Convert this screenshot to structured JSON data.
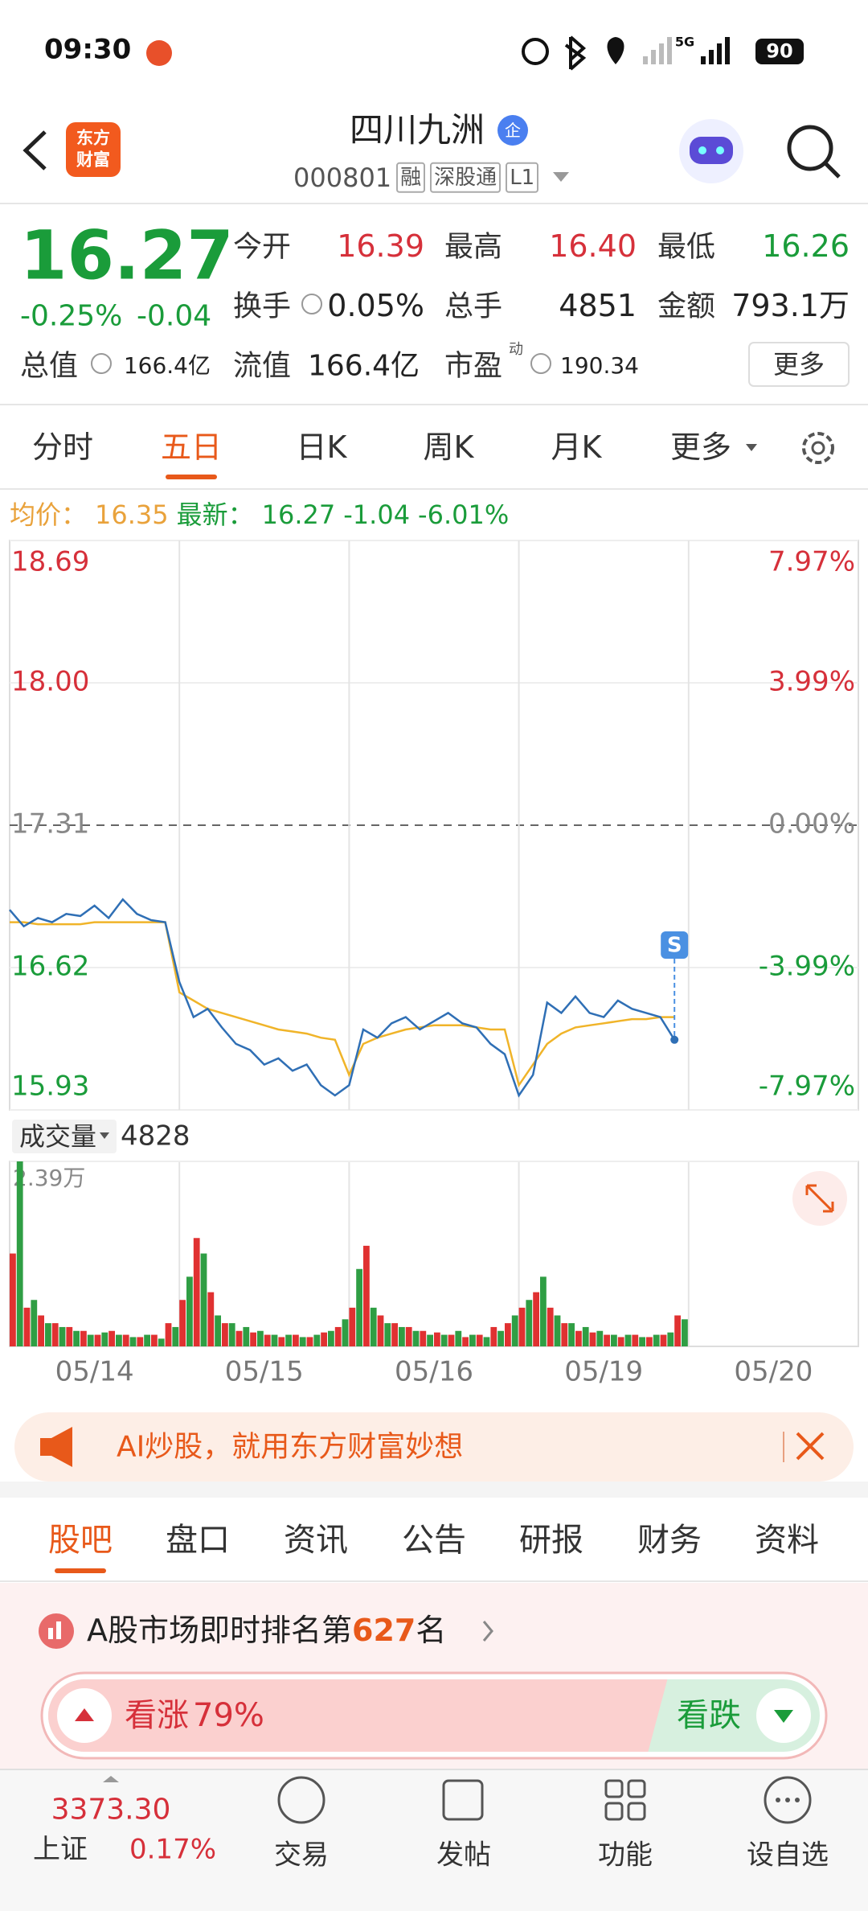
{
  "status": {
    "time": "09:30",
    "network": "5G",
    "battery": "90"
  },
  "header": {
    "logo": "东方财富",
    "title": "四川九洲",
    "badge": "企",
    "code": "000801",
    "tags": [
      "融",
      "深股通",
      "L1"
    ]
  },
  "quote": {
    "price": "16.27",
    "change_pct": "-0.25%",
    "change": "-0.04",
    "more": "更多",
    "fields": [
      {
        "label": "今开",
        "value": "16.39",
        "color": "#d6303a"
      },
      {
        "label": "最高",
        "value": "16.40",
        "color": "#d6303a"
      },
      {
        "label": "最低",
        "value": "16.26",
        "color": "#1a9c3a"
      },
      {
        "label": "换手",
        "value": "0.05%",
        "color": "#222222"
      },
      {
        "label": "总手",
        "value": "4851",
        "color": "#222222"
      },
      {
        "label": "金额",
        "value": "793.1万",
        "color": "#222222"
      },
      {
        "label": "总值",
        "value": "166.4亿",
        "color": "#222222"
      },
      {
        "label": "流值",
        "value": "166.4亿",
        "color": "#222222"
      },
      {
        "label": "市盈",
        "sup": "动",
        "value": "190.34",
        "color": "#222222"
      }
    ]
  },
  "tabs": {
    "items": [
      "分时",
      "五日",
      "日K",
      "周K",
      "月K",
      "更多"
    ],
    "active": 1
  },
  "chart_info": {
    "avg_label": "均价：",
    "avg": "16.35",
    "last_label": "最新：",
    "last": "16.27",
    "change": "-1.04",
    "change_pct": "-6.01%",
    "marker": "S",
    "volume_label": "成交量",
    "volume_last": "4828"
  },
  "chart_data": [
    {
      "type": "line",
      "x": [
        0,
        1,
        2,
        3,
        4,
        5,
        6,
        7,
        8,
        9,
        10,
        11,
        12,
        13,
        14,
        15,
        16,
        17,
        18,
        19,
        20,
        21,
        22,
        23,
        24,
        25,
        26,
        27,
        28,
        29,
        30,
        31,
        32,
        33,
        34,
        35,
        36,
        37,
        38,
        39,
        40,
        41,
        42,
        43,
        44,
        45,
        46,
        47
      ],
      "xlim": [
        0,
        60
      ],
      "xticks": [
        {
          "value": 6,
          "label": "05/14"
        },
        {
          "value": 18,
          "label": "05/15"
        },
        {
          "value": 30,
          "label": "05/16"
        },
        {
          "value": 42,
          "label": "05/19"
        },
        {
          "value": 54,
          "label": "05/20"
        }
      ],
      "ylim": [
        15.93,
        18.69
      ],
      "yticks": [
        18.69,
        {
          "value": 18,
          "label": "18.00"
        },
        17.31,
        16.62,
        15.93
      ],
      "y2lim": [
        -7.97,
        7.97
      ],
      "y2ticks": [
        {
          "value": 7.97,
          "label": "7.97%"
        },
        {
          "value": 3.99,
          "label": "3.99%"
        },
        {
          "value": 0,
          "label": "0.00%"
        },
        {
          "value": -3.99,
          "label": "-3.99%"
        },
        {
          "value": -7.97,
          "label": "-7.97%"
        }
      ],
      "grid": true,
      "series": [
        {
          "color": "#2f6fb5",
          "values": [
            16.9,
            16.82,
            16.86,
            16.84,
            16.88,
            16.87,
            16.92,
            16.86,
            16.95,
            16.88,
            16.85,
            16.84,
            16.55,
            16.38,
            16.42,
            16.33,
            16.25,
            16.22,
            16.15,
            16.18,
            16.12,
            16.15,
            16.05,
            16.0,
            16.05,
            16.32,
            16.28,
            16.35,
            16.38,
            16.32,
            16.36,
            16.4,
            16.35,
            16.33,
            16.25,
            16.2,
            16.0,
            16.1,
            16.45,
            16.4,
            16.48,
            16.4,
            16.38,
            16.46,
            16.42,
            16.4,
            16.38,
            16.27
          ]
        },
        {
          "color": "#f0b429",
          "values": [
            16.84,
            16.84,
            16.83,
            16.83,
            16.83,
            16.83,
            16.84,
            16.84,
            16.84,
            16.84,
            16.84,
            16.84,
            16.5,
            16.46,
            16.42,
            16.4,
            16.38,
            16.36,
            16.34,
            16.32,
            16.31,
            16.3,
            16.28,
            16.27,
            16.1,
            16.25,
            16.28,
            16.3,
            16.32,
            16.33,
            16.34,
            16.34,
            16.34,
            16.33,
            16.32,
            16.32,
            16.05,
            16.15,
            16.25,
            16.3,
            16.33,
            16.34,
            16.35,
            16.36,
            16.37,
            16.37,
            16.38,
            16.38
          ]
        }
      ]
    },
    {
      "type": "bar",
      "x": [
        0,
        1,
        2,
        3,
        4,
        5,
        6,
        7,
        8,
        9,
        10,
        11,
        12,
        13,
        14,
        15,
        16,
        17,
        18,
        19,
        20,
        21,
        22,
        23,
        24,
        25,
        26,
        27,
        28,
        29,
        30,
        31,
        32,
        33,
        34,
        35,
        36,
        37,
        38,
        39,
        40,
        41,
        42,
        43,
        44,
        45,
        46,
        47
      ],
      "xlim": [
        0,
        60
      ],
      "ylim": [
        0,
        23900
      ],
      "yticks": [
        {
          "value": 23900,
          "label": "2.39万"
        }
      ],
      "series": [
        {
          "color": "#e03131",
          "values": [
            12000,
            5000,
            4000,
            3000,
            2500,
            2000,
            1500,
            2000,
            1500,
            1200,
            1500,
            3000,
            6000,
            14000,
            7000,
            3000,
            2000,
            1800,
            1500,
            1200,
            1500,
            1200,
            1800,
            2500,
            5000,
            13000,
            4000,
            3000,
            2500,
            2000,
            1800,
            1500,
            1200,
            1500,
            2500,
            3000,
            5000,
            7000,
            5000,
            3000,
            2000,
            1800,
            1500,
            1200,
            1500,
            1200,
            1500,
            4000
          ]
        },
        {
          "color": "#2f9e44",
          "values": [
            23900,
            6000,
            3000,
            2500,
            2000,
            1500,
            1800,
            1500,
            1200,
            1500,
            1000,
            2500,
            9000,
            12000,
            4000,
            3000,
            2500,
            2000,
            1500,
            1500,
            1200,
            1500,
            2000,
            3500,
            10000,
            5000,
            3000,
            2500,
            2000,
            1500,
            1500,
            2000,
            1500,
            1200,
            2000,
            4000,
            6000,
            9000,
            4000,
            3000,
            2500,
            2000,
            1500,
            1500,
            1200,
            1500,
            1800,
            3500
          ]
        }
      ]
    }
  ],
  "banner": {
    "text": "AI炒股，就用东方财富妙想"
  },
  "section_tabs": {
    "items": [
      "股吧",
      "盘口",
      "资讯",
      "公告",
      "研报",
      "财务",
      "资料"
    ],
    "active": 0
  },
  "ranking": {
    "prefix": "A股市场即时排名第",
    "rank": "627",
    "suffix": "名"
  },
  "sentiment": {
    "up_label": "看涨",
    "up": {
      "value": 79,
      "label": "79%"
    },
    "down_label": "看跌"
  },
  "bottom_nav": {
    "index_value": "3373.30",
    "index_name": "上证",
    "index_change": "0.17%",
    "items": [
      "交易",
      "发帖",
      "功能",
      "设自选"
    ]
  }
}
